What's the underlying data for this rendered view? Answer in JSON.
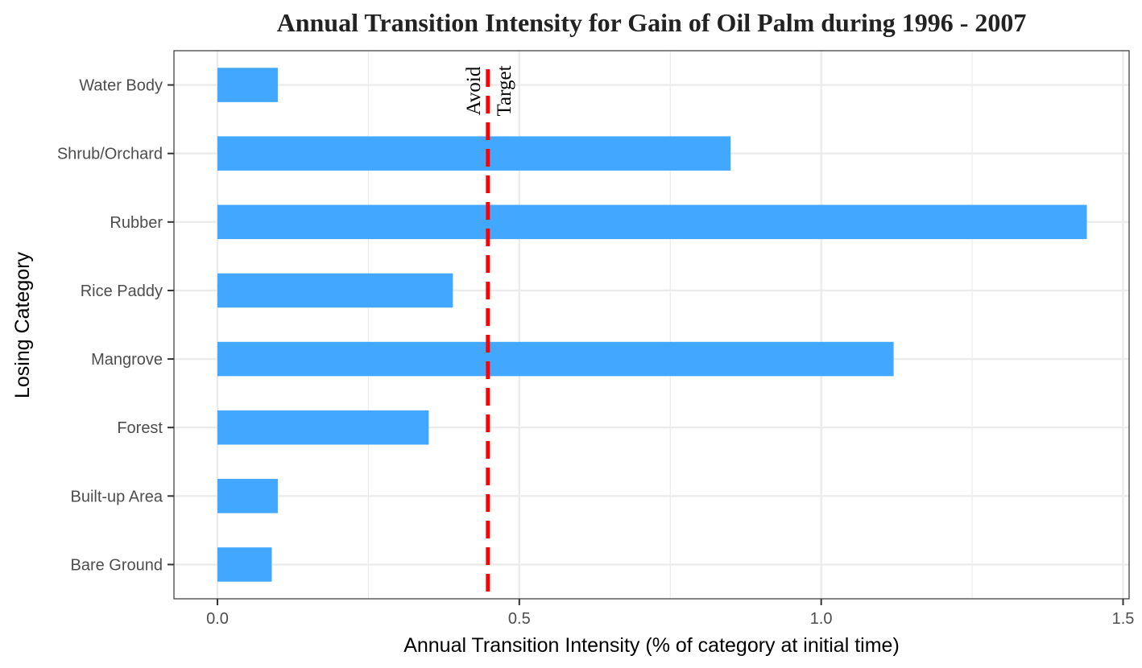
{
  "chart_data": {
    "type": "bar",
    "orientation": "horizontal",
    "title": "Annual Transition Intensity for Gain of  Oil Palm during 1996 - 2007",
    "xlabel": "Annual Transition Intensity (% of category at initial time)",
    "ylabel": "Losing Category",
    "categories": [
      "Water Body",
      "Shrub/Orchard",
      "Rubber",
      "Rice Paddy",
      "Mangrove",
      "Forest",
      "Built-up Area",
      "Bare Ground"
    ],
    "values": [
      0.1,
      0.85,
      1.44,
      0.39,
      1.12,
      0.35,
      0.1,
      0.09
    ],
    "xlim": [
      -0.072,
      1.51
    ],
    "xticks": [
      0.0,
      0.5,
      1.0,
      1.5
    ],
    "xtick_labels": [
      "0.0",
      "0.5",
      "1.0",
      "1.5"
    ],
    "grid": true,
    "colors": {
      "bar": "#42A7FF",
      "reference_line": "#FF0000",
      "grid": "#EBEBEB",
      "panel_border": "#333333"
    },
    "reference_line": {
      "value": 0.448,
      "style": "dashed",
      "label_left": "Avoid",
      "label_right": "Target"
    }
  }
}
